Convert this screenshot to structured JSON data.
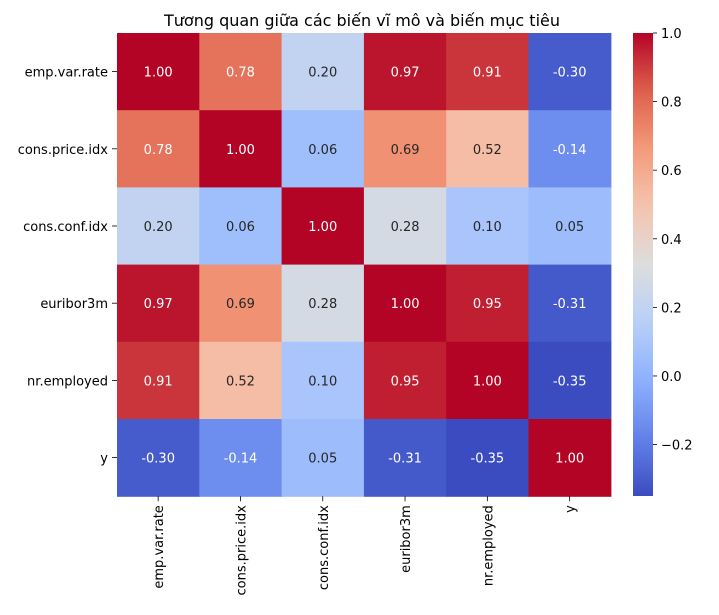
{
  "chart_data": {
    "type": "heatmap",
    "title": "Tương quan giữa các biến vĩ mô và biến mục tiêu",
    "xlabel": "",
    "ylabel": "",
    "x_labels": [
      "emp.var.rate",
      "cons.price.idx",
      "cons.conf.idx",
      "euribor3m",
      "nr.employed",
      "y"
    ],
    "y_labels": [
      "emp.var.rate",
      "cons.price.idx",
      "cons.conf.idx",
      "euribor3m",
      "nr.employed",
      "y"
    ],
    "values": [
      [
        1.0,
        0.78,
        0.2,
        0.97,
        0.91,
        -0.3
      ],
      [
        0.78,
        1.0,
        0.06,
        0.69,
        0.52,
        -0.14
      ],
      [
        0.2,
        0.06,
        1.0,
        0.28,
        0.1,
        0.05
      ],
      [
        0.97,
        0.69,
        0.28,
        1.0,
        0.95,
        -0.31
      ],
      [
        0.91,
        0.52,
        0.1,
        0.95,
        1.0,
        -0.35
      ],
      [
        -0.3,
        -0.14,
        0.05,
        -0.31,
        -0.35,
        1.0
      ]
    ],
    "colormap": "coolwarm",
    "vmin": -0.35,
    "vmax": 1.0,
    "colorbar_ticks": [
      1.0,
      0.8,
      0.6,
      0.4,
      0.2,
      0.0,
      -0.2
    ],
    "colorbar_tick_labels": [
      "1.0",
      "0.8",
      "0.6",
      "0.4",
      "0.2",
      "0.0",
      "−0.2"
    ],
    "grid": false,
    "legend": "right"
  }
}
